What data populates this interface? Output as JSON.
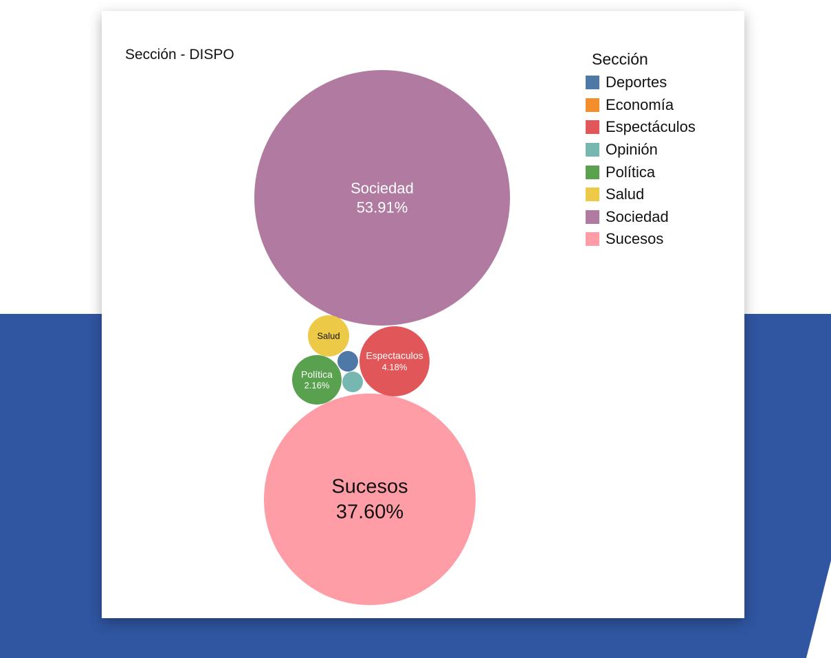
{
  "chart_data": {
    "type": "bubble",
    "title": "Sección - DISPO",
    "legend": {
      "title": "Sección",
      "placement": "top-right",
      "items": [
        {
          "name": "Deportes",
          "color": "#4e79a7"
        },
        {
          "name": "Economía",
          "color": "#f28e2b"
        },
        {
          "name": "Espectáculos",
          "color": "#e15759"
        },
        {
          "name": "Opinión",
          "color": "#76b7b2"
        },
        {
          "name": "Política",
          "color": "#59a14f"
        },
        {
          "name": "Salud",
          "color": "#edc948"
        },
        {
          "name": "Sociedad",
          "color": "#b07aa1"
        },
        {
          "name": "Sucesos",
          "color": "#ff9da7"
        }
      ]
    },
    "bubbles": [
      {
        "name": "Sociedad",
        "label": "Sociedad",
        "value_label": "53.91%",
        "value": 53.91,
        "color": "#b07aa1"
      },
      {
        "name": "Sucesos",
        "label": "Sucesos",
        "value_label": "37.60%",
        "value": 37.6,
        "color": "#ff9da7"
      },
      {
        "name": "Espectáculos",
        "label": "Espectaculos",
        "value_label": "4.18%",
        "value": 4.18,
        "color": "#e15759"
      },
      {
        "name": "Política",
        "label": "Política",
        "value_label": "2.16%",
        "value": 2.16,
        "color": "#59a14f"
      },
      {
        "name": "Salud",
        "label": "Salud",
        "value_label": "",
        "value": 1.6,
        "color": "#edc948"
      },
      {
        "name": "Deportes",
        "label": "",
        "value_label": "",
        "value": 0.4,
        "color": "#4e79a7"
      },
      {
        "name": "Opinión",
        "label": "",
        "value_label": "",
        "value": 0.4,
        "color": "#76b7b2"
      }
    ]
  }
}
